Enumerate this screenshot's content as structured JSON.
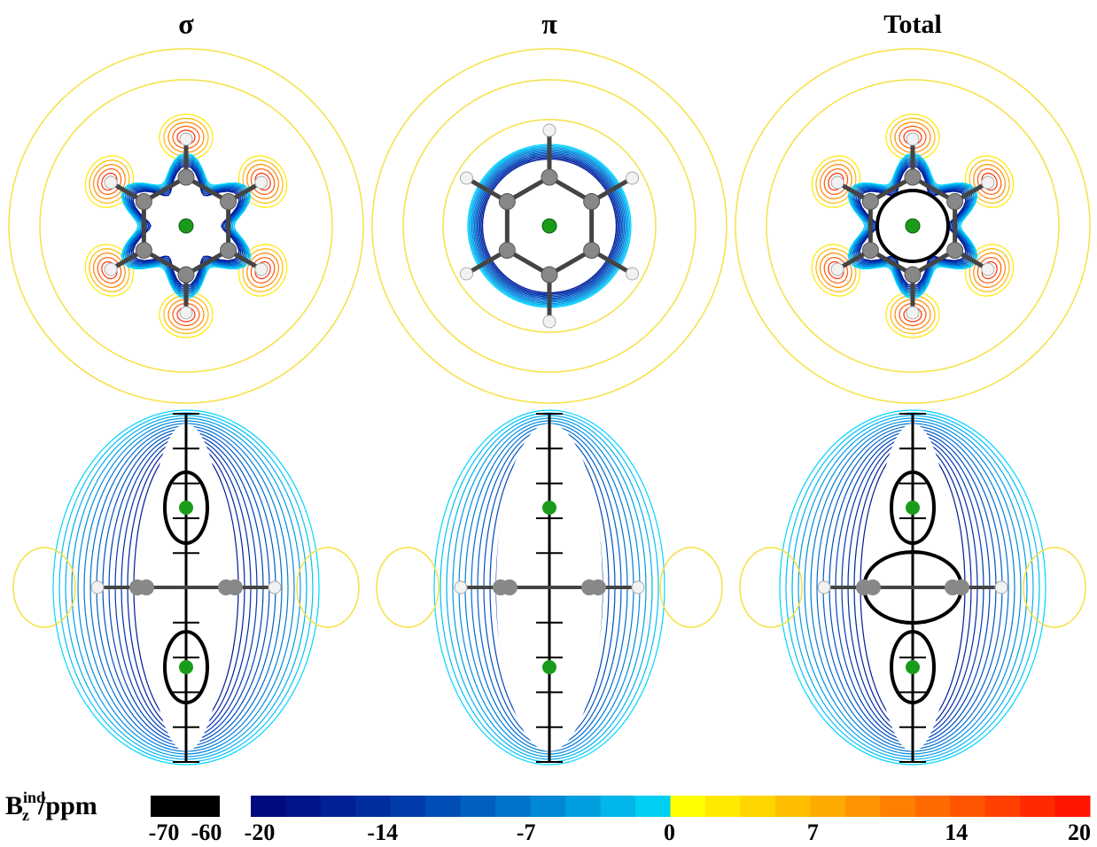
{
  "panels": {
    "titles": [
      "σ",
      "π",
      "Total"
    ]
  },
  "colorbar": {
    "label": {
      "symbol": "B",
      "superscript": "ind",
      "subscript": "z",
      "unit": "/ppm"
    },
    "black_ticks": [
      -70,
      -60
    ],
    "range": [
      -20,
      20
    ],
    "ticks": [
      -20,
      -14,
      -7,
      0,
      7,
      14,
      20
    ]
  }
}
